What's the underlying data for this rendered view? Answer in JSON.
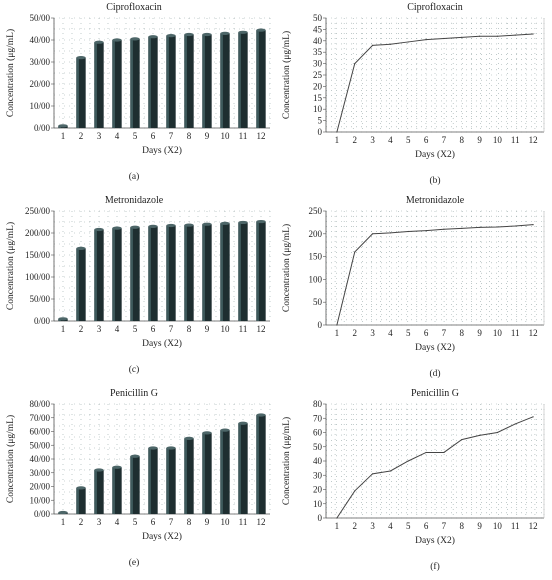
{
  "charts": [
    {
      "type": "bar",
      "title": "Ciprofloxacin",
      "xlabel": "Days (X2)",
      "ylabel": "Concentration (μg/mL)",
      "panel_label": "(a)",
      "categories": [
        "1",
        "2",
        "3",
        "4",
        "5",
        "6",
        "7",
        "8",
        "9",
        "10",
        "11",
        "12"
      ],
      "values": [
        1,
        32,
        39,
        40,
        40.5,
        41.5,
        42,
        42.5,
        42.5,
        43,
        43.5,
        44.5
      ],
      "ylim": [
        0,
        50
      ],
      "yticks": [
        "0/00",
        "10/00",
        "20/00",
        "30/00",
        "40/00",
        "50/00"
      ],
      "grid": "dotted",
      "bar_color": "#1e2e30"
    },
    {
      "type": "line",
      "title": "Ciprofloxacin",
      "xlabel": "Days (X2)",
      "ylabel": "Concentration (μg/mL)",
      "panel_label": "(b)",
      "categories": [
        "1",
        "2",
        "3",
        "4",
        "5",
        "6",
        "7",
        "8",
        "9",
        "10",
        "11",
        "12"
      ],
      "values": [
        0,
        30,
        38,
        38.5,
        39.5,
        40.5,
        41,
        41.5,
        42,
        42,
        42.5,
        43
      ],
      "ylim": [
        0,
        50
      ],
      "yticks": [
        "0",
        "5",
        "10",
        "15",
        "20",
        "25",
        "30",
        "35",
        "40",
        "45",
        "50"
      ],
      "grid": "dotted",
      "line_color": "#444444"
    },
    {
      "type": "bar",
      "title": "Metronidazole",
      "xlabel": "Days (X2)",
      "ylabel": "Concentration (μg/mL)",
      "panel_label": "(c)",
      "categories": [
        "1",
        "2",
        "3",
        "4",
        "5",
        "6",
        "7",
        "8",
        "9",
        "10",
        "11",
        "12"
      ],
      "values": [
        5,
        165,
        208,
        211,
        213,
        215,
        217,
        218,
        220,
        222,
        224,
        226
      ],
      "ylim": [
        0,
        250
      ],
      "yticks": [
        "0/00",
        "50/00",
        "100/00",
        "150/00",
        "200/00",
        "250/00"
      ],
      "grid": "dotted",
      "bar_color": "#1e2e30"
    },
    {
      "type": "line",
      "title": "Metronidazole",
      "xlabel": "Days (X2)",
      "ylabel": "Concentration (μg/mL)",
      "panel_label": "(d)",
      "categories": [
        "1",
        "2",
        "3",
        "4",
        "5",
        "6",
        "7",
        "8",
        "9",
        "10",
        "11",
        "12"
      ],
      "values": [
        0,
        160,
        200,
        202,
        205,
        207,
        210,
        212,
        214,
        215,
        217,
        220
      ],
      "ylim": [
        0,
        250
      ],
      "yticks": [
        "0",
        "50",
        "100",
        "150",
        "200",
        "250"
      ],
      "grid": "dotted",
      "line_color": "#444444"
    },
    {
      "type": "bar",
      "title": "Penicillin G",
      "xlabel": "Days (X2)",
      "ylabel": "Concentration (μg/mL)",
      "panel_label": "(e)",
      "categories": [
        "1",
        "2",
        "3",
        "4",
        "5",
        "6",
        "7",
        "8",
        "9",
        "10",
        "11",
        "12"
      ],
      "values": [
        1,
        19,
        32,
        34,
        42,
        48,
        48,
        55,
        59,
        61,
        66,
        72
      ],
      "ylim": [
        0,
        80
      ],
      "yticks": [
        "0/00",
        "10/00",
        "20/00",
        "30/00",
        "40/00",
        "50/00",
        "60/00",
        "70/00",
        "80/00"
      ],
      "grid": "dotted",
      "bar_color": "#1e2e30"
    },
    {
      "type": "line",
      "title": "Penicillin G",
      "xlabel": "Days (X2)",
      "ylabel": "Concentration (μg/mL)",
      "panel_label": "(f)",
      "categories": [
        "1",
        "2",
        "3",
        "4",
        "5",
        "6",
        "7",
        "8",
        "9",
        "10",
        "11",
        "12"
      ],
      "values": [
        0,
        19,
        31,
        33,
        40,
        46,
        46,
        55,
        58,
        60,
        66,
        71
      ],
      "ylim": [
        0,
        80
      ],
      "yticks": [
        "0",
        "10",
        "20",
        "30",
        "40",
        "50",
        "60",
        "70",
        "80"
      ],
      "grid": "dotted",
      "line_color": "#444444"
    }
  ]
}
